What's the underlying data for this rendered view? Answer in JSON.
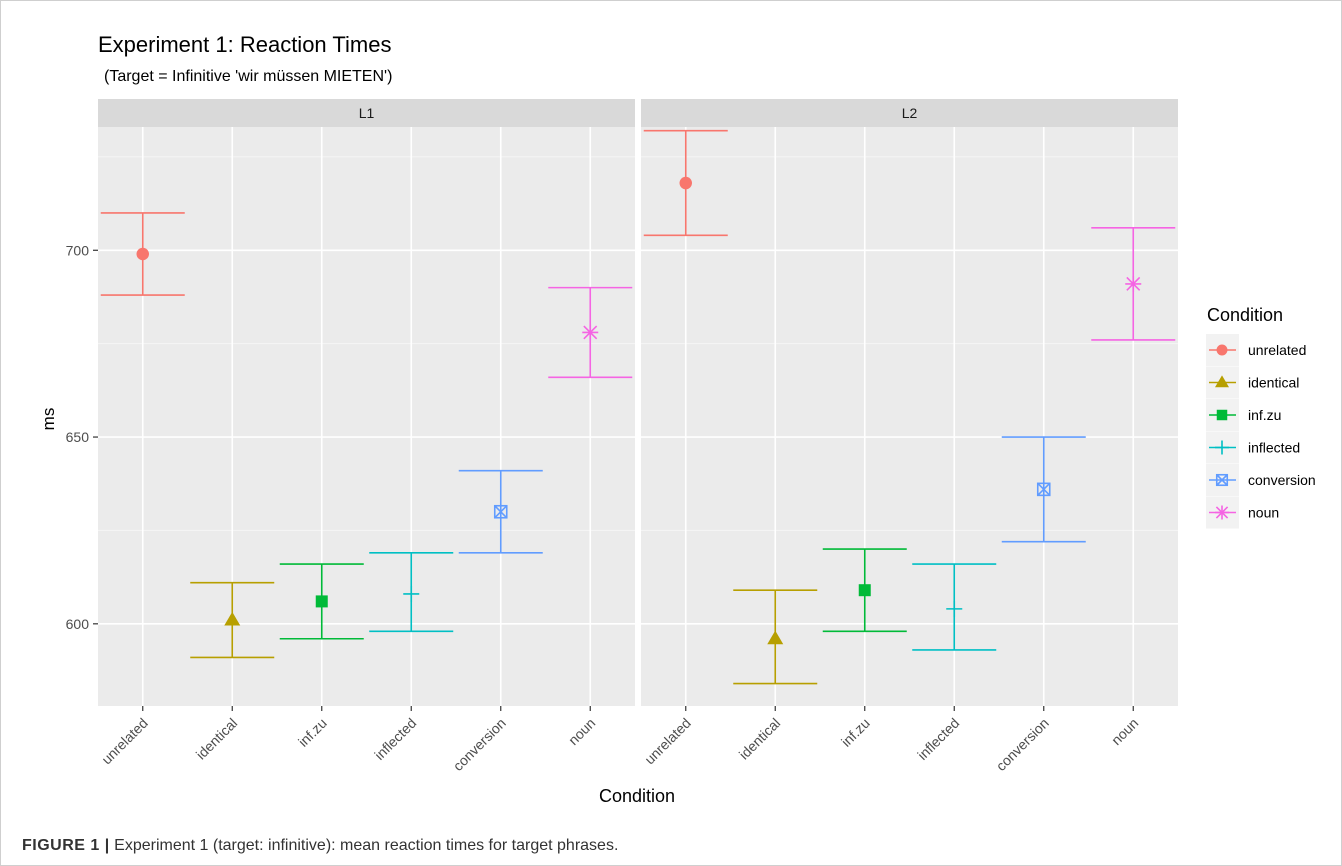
{
  "chart_data": {
    "type": "scatter",
    "title": "Experiment 1: Reaction Times",
    "subtitle": "(Target = Infinitive 'wir müssen MIETEN')",
    "xlabel": "Condition",
    "ylabel": "ms",
    "y_ticks": [
      600,
      650,
      700
    ],
    "ylim": [
      578,
      733
    ],
    "grid": true,
    "categories": [
      "unrelated",
      "identical",
      "inf.zu",
      "inflected",
      "conversion",
      "noun"
    ],
    "panels": [
      {
        "label": "L1",
        "points": [
          {
            "condition": "unrelated",
            "mean": 699,
            "lower": 688,
            "upper": 710
          },
          {
            "condition": "identical",
            "mean": 601,
            "lower": 591,
            "upper": 611
          },
          {
            "condition": "inf.zu",
            "mean": 606,
            "lower": 596,
            "upper": 616
          },
          {
            "condition": "inflected",
            "mean": 608,
            "lower": 598,
            "upper": 619
          },
          {
            "condition": "conversion",
            "mean": 630,
            "lower": 619,
            "upper": 641
          },
          {
            "condition": "noun",
            "mean": 678,
            "lower": 666,
            "upper": 690
          }
        ]
      },
      {
        "label": "L2",
        "points": [
          {
            "condition": "unrelated",
            "mean": 718,
            "lower": 704,
            "upper": 732
          },
          {
            "condition": "identical",
            "mean": 596,
            "lower": 584,
            "upper": 609
          },
          {
            "condition": "inf.zu",
            "mean": 609,
            "lower": 598,
            "upper": 620
          },
          {
            "condition": "inflected",
            "mean": 604,
            "lower": 593,
            "upper": 616
          },
          {
            "condition": "conversion",
            "mean": 636,
            "lower": 622,
            "upper": 650
          },
          {
            "condition": "noun",
            "mean": 691,
            "lower": 676,
            "upper": 706
          }
        ]
      }
    ],
    "legend": {
      "title": "Condition",
      "placement": "right",
      "items": [
        {
          "name": "unrelated",
          "color": "#F8766D",
          "shape": "circle"
        },
        {
          "name": "identical",
          "color": "#B79F00",
          "shape": "triangle"
        },
        {
          "name": "inf.zu",
          "color": "#00BA38",
          "shape": "square"
        },
        {
          "name": "inflected",
          "color": "#00BFC4",
          "shape": "plus"
        },
        {
          "name": "conversion",
          "color": "#619CFF",
          "shape": "square-cross"
        },
        {
          "name": "noun",
          "color": "#F564E3",
          "shape": "asterisk"
        }
      ]
    }
  },
  "caption": {
    "label": "FIGURE 1 |",
    "text": "Experiment 1 (target: infinitive): mean reaction times for target phrases."
  }
}
